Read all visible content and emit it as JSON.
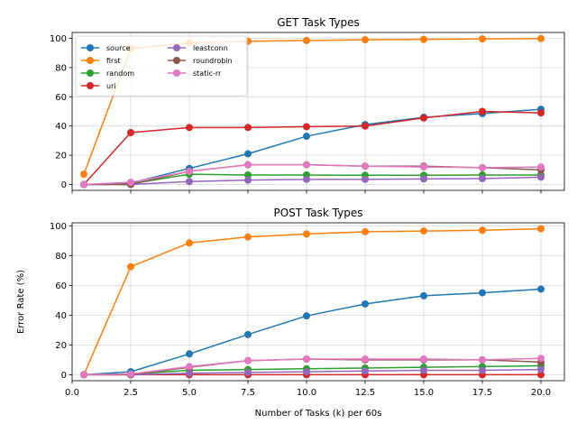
{
  "chart_data": [
    {
      "type": "line",
      "title": "GET Task Types",
      "xlabel": "",
      "ylabel": "",
      "x": [
        0.5,
        2.5,
        5,
        7.5,
        10,
        12.5,
        15,
        17.5,
        20
      ],
      "xlim": [
        0,
        21
      ],
      "ylim": [
        -4,
        104
      ],
      "xticks": [
        0.0,
        2.5,
        5.0,
        7.5,
        10.0,
        12.5,
        15.0,
        17.5,
        20.0
      ],
      "xtick_labels_visible": false,
      "yticks": [
        0,
        20,
        40,
        60,
        80,
        100
      ],
      "grid": true,
      "legend": {
        "placement": "upper-left",
        "columns": 2
      },
      "series": [
        {
          "name": "source",
          "color": "#1f77b4",
          "values": [
            0,
            1,
            11,
            21,
            33,
            41,
            46,
            48.5,
            51.5
          ]
        },
        {
          "name": "first",
          "color": "#ff7f0e",
          "values": [
            7,
            93,
            97,
            98,
            98.5,
            99,
            99.3,
            99.6,
            99.8
          ]
        },
        {
          "name": "random",
          "color": "#2ca02c",
          "values": [
            0,
            0.5,
            7,
            6.5,
            6.5,
            6.3,
            6.3,
            6.5,
            6.5
          ]
        },
        {
          "name": "uri",
          "color": "#d62728",
          "values": [
            0,
            35.5,
            39,
            39,
            39.5,
            40,
            45.5,
            50,
            49
          ]
        },
        {
          "name": "leastconn",
          "color": "#9467bd",
          "values": [
            0,
            0,
            2,
            3,
            3.5,
            3.5,
            3.8,
            4,
            5
          ]
        },
        {
          "name": "roundrobin",
          "color": "#8c564b",
          "values": [
            0,
            0,
            9,
            13.5,
            13.5,
            12.5,
            12.5,
            11.5,
            10
          ]
        },
        {
          "name": "static-rr",
          "color": "#e377c2",
          "values": [
            0,
            1.5,
            9,
            13.5,
            13.5,
            12.5,
            12,
            11.5,
            12
          ]
        }
      ]
    },
    {
      "type": "line",
      "title": "POST Task Types",
      "xlabel": "Number of Tasks (k) per 60s",
      "ylabel": "Error Rate (%)",
      "x": [
        0.5,
        2.5,
        5,
        7.5,
        10,
        12.5,
        15,
        17.5,
        20
      ],
      "xlim": [
        0,
        21
      ],
      "ylim": [
        -4,
        102
      ],
      "xticks": [
        0.0,
        2.5,
        5.0,
        7.5,
        10.0,
        12.5,
        15.0,
        17.5,
        20.0
      ],
      "xtick_labels_visible": true,
      "yticks": [
        0,
        20,
        40,
        60,
        80,
        100
      ],
      "grid": true,
      "series": [
        {
          "name": "source",
          "color": "#1f77b4",
          "values": [
            0,
            2,
            14,
            27,
            39.5,
            47.5,
            53,
            55,
            57.5
          ]
        },
        {
          "name": "first",
          "color": "#ff7f0e",
          "values": [
            0,
            72.5,
            88.5,
            92.5,
            94.5,
            96,
            96.5,
            97,
            98
          ]
        },
        {
          "name": "random",
          "color": "#2ca02c",
          "values": [
            0,
            0.5,
            3,
            3.5,
            4,
            4.5,
            5,
            5.5,
            6
          ]
        },
        {
          "name": "uri",
          "color": "#d62728",
          "values": [
            0,
            0,
            0,
            0,
            0,
            0,
            0,
            0,
            0
          ]
        },
        {
          "name": "leastconn",
          "color": "#9467bd",
          "values": [
            0,
            0,
            1,
            1.5,
            2,
            2.5,
            3,
            3,
            3.5
          ]
        },
        {
          "name": "roundrobin",
          "color": "#8c564b",
          "values": [
            0,
            0,
            5,
            9.5,
            10.5,
            10,
            10,
            10,
            8.5
          ]
        },
        {
          "name": "static-rr",
          "color": "#e377c2",
          "values": [
            0,
            0.5,
            5.5,
            9.5,
            10.5,
            10.5,
            10.5,
            10,
            11
          ]
        }
      ]
    }
  ]
}
